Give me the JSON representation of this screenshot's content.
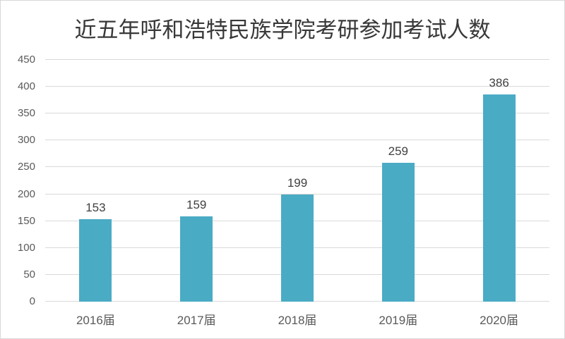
{
  "chart_data": {
    "type": "bar",
    "title": "近五年呼和浩特民族学院考研参加考试人数",
    "categories": [
      "2016届",
      "2017届",
      "2018届",
      "2019届",
      "2020届"
    ],
    "values": [
      153,
      159,
      199,
      259,
      386
    ],
    "xlabel": "",
    "ylabel": "",
    "ylim": [
      0,
      450
    ],
    "ytick_step": 50,
    "y_tick_labels": [
      "0",
      "50",
      "100",
      "150",
      "200",
      "250",
      "300",
      "350",
      "400",
      "450"
    ],
    "grid": true,
    "legend": false,
    "colors": {
      "bar": "#4aabc5",
      "gridline": "#d9d9d9",
      "axis_text": "#595959",
      "value_label_text": "#404040",
      "title_text": "#383838",
      "background": "#ffffff",
      "frame_border": "#d9d9d9"
    }
  }
}
